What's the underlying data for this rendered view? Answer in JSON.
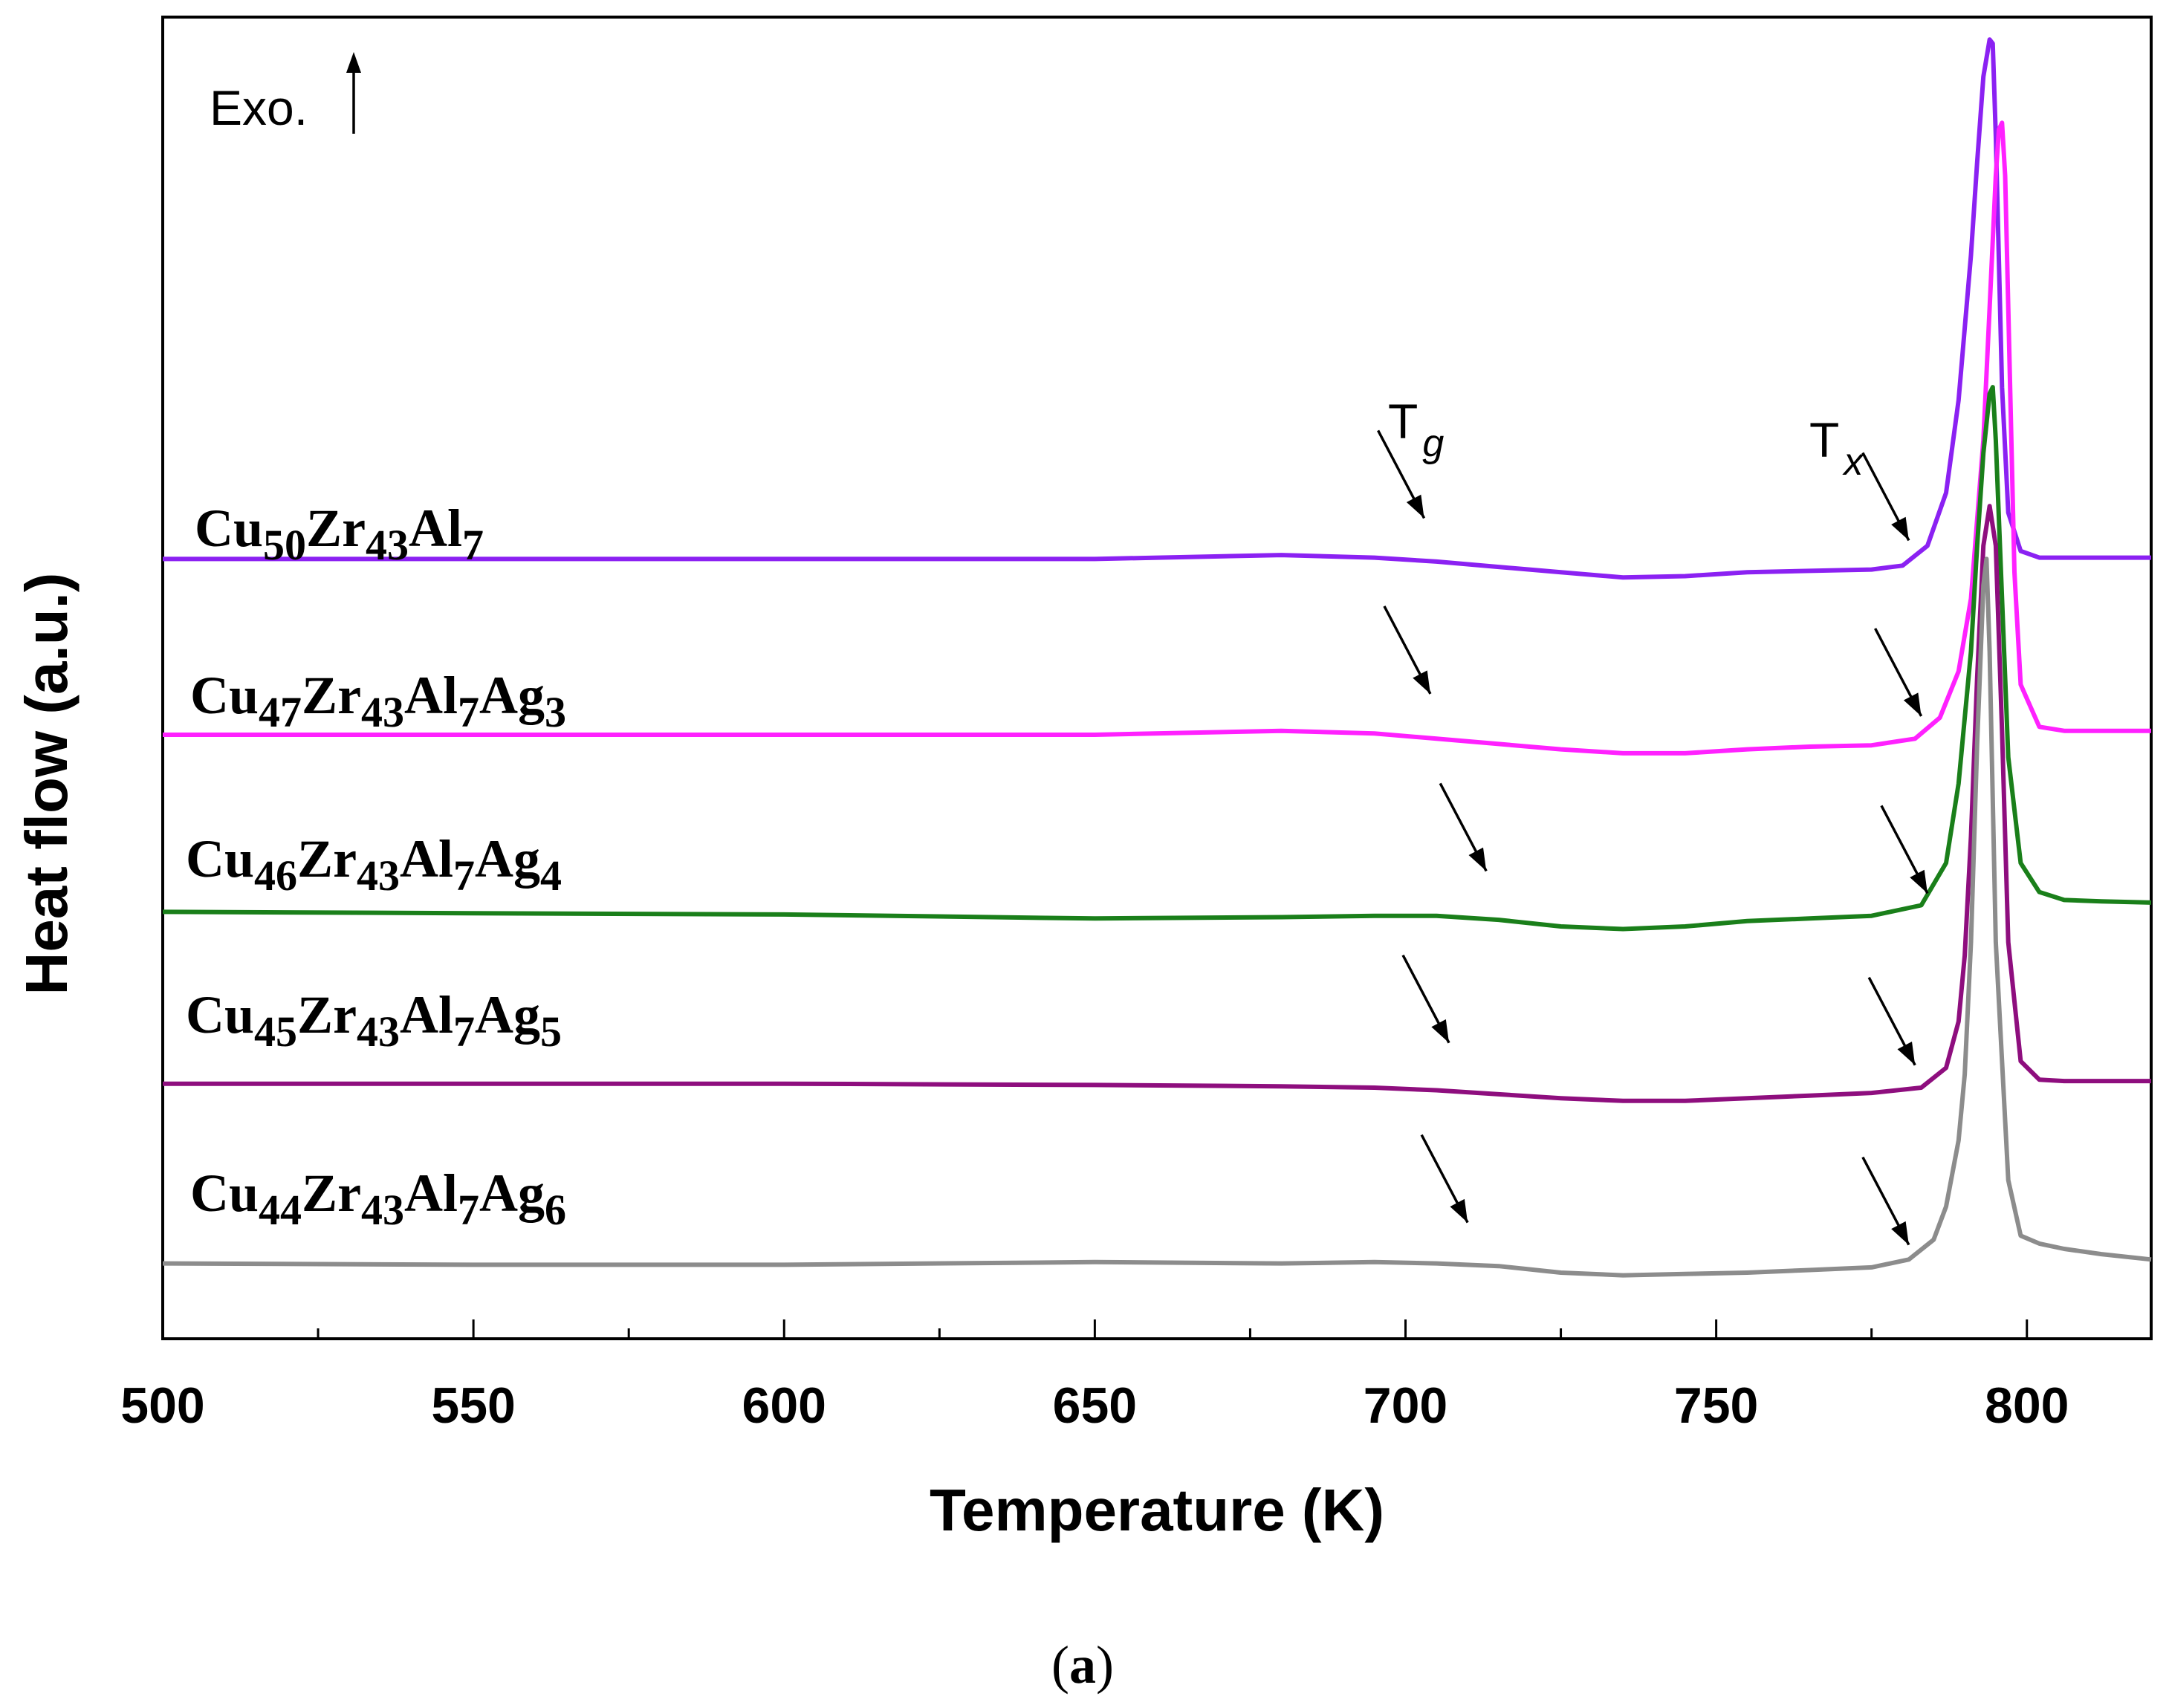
{
  "chart_data": {
    "type": "line",
    "title": "",
    "xlabel": "Temperature (K)",
    "ylabel": "Heat flow (a.u.)",
    "xlim": [
      500,
      820
    ],
    "ylim": [
      0,
      100
    ],
    "xticks": [
      500,
      550,
      600,
      650,
      700,
      750,
      800
    ],
    "xtick_labels": [
      "500",
      "550",
      "600",
      "650",
      "700",
      "750",
      "800"
    ],
    "yticks_shown": false,
    "grid": false,
    "caption": {
      "open": "(",
      "letter": "a",
      "close": ")"
    },
    "exo_label": "Exo.",
    "annotations": {
      "tg": {
        "main": "T",
        "sub": "g"
      },
      "tx": {
        "main": "T",
        "sub": "x"
      }
    },
    "series": [
      {
        "name": "Cu50Zr43Al7",
        "label_parts": [
          {
            "t": "Cu",
            "sub": false
          },
          {
            "t": "50",
            "sub": true
          },
          {
            "t": "Zr",
            "sub": false
          },
          {
            "t": "43",
            "sub": true
          },
          {
            "t": "Al",
            "sub": false
          },
          {
            "t": "7",
            "sub": true
          }
        ],
        "color": "#8B21F2",
        "x": [
          500,
          550,
          600,
          650,
          680,
          695,
          705,
          715,
          725,
          735,
          745,
          755,
          765,
          775,
          780,
          784,
          787,
          789,
          791,
          792,
          793,
          794,
          794.5,
          795,
          796,
          797,
          799,
          802,
          806,
          812,
          820
        ],
        "y": [
          59.0,
          59.0,
          59.0,
          59.0,
          59.3,
          59.1,
          58.8,
          58.4,
          58.0,
          57.6,
          57.7,
          58.0,
          58.1,
          58.2,
          58.5,
          60.0,
          64.0,
          71.0,
          82.0,
          89.0,
          95.5,
          98.3,
          98.0,
          91.0,
          72.0,
          62.5,
          59.6,
          59.1,
          59.1,
          59.1,
          59.1
        ],
        "tg_arrow_x": 703,
        "tx_arrow_x": 781
      },
      {
        "name": "Cu47Zr43Al7Ag3",
        "label_parts": [
          {
            "t": "Cu",
            "sub": false
          },
          {
            "t": "47",
            "sub": true
          },
          {
            "t": "Zr",
            "sub": false
          },
          {
            "t": "43",
            "sub": true
          },
          {
            "t": "Al",
            "sub": false
          },
          {
            "t": "7",
            "sub": true
          },
          {
            "t": "Ag",
            "sub": false
          },
          {
            "t": "3",
            "sub": true
          }
        ],
        "color": "#FF21FF",
        "x": [
          500,
          550,
          600,
          650,
          680,
          695,
          705,
          715,
          725,
          735,
          745,
          755,
          765,
          775,
          782,
          786,
          789,
          791,
          793,
          794,
          795,
          795.5,
          796,
          796.5,
          797,
          798,
          799,
          802,
          806,
          812,
          820
        ],
        "y": [
          45.7,
          45.7,
          45.7,
          45.7,
          46.0,
          45.8,
          45.4,
          45.0,
          44.6,
          44.3,
          44.3,
          44.6,
          44.8,
          44.9,
          45.4,
          47.0,
          50.5,
          56.0,
          68.0,
          78.0,
          88.0,
          91.5,
          92.0,
          88.0,
          78.0,
          58.0,
          49.5,
          46.3,
          46.0,
          46.0,
          46.0
        ],
        "tg_arrow_x": 704,
        "tx_arrow_x": 783
      },
      {
        "name": "Cu46Zr43Al7Ag4",
        "label_parts": [
          {
            "t": "Cu",
            "sub": false
          },
          {
            "t": "46",
            "sub": true
          },
          {
            "t": "Zr",
            "sub": false
          },
          {
            "t": "43",
            "sub": true
          },
          {
            "t": "Al",
            "sub": false
          },
          {
            "t": "7",
            "sub": true
          },
          {
            "t": "Ag",
            "sub": false
          },
          {
            "t": "4",
            "sub": true
          }
        ],
        "color": "#1A7F1A",
        "x": [
          500,
          550,
          600,
          650,
          680,
          695,
          705,
          715,
          725,
          735,
          745,
          755,
          765,
          775,
          783,
          787,
          789,
          791,
          792,
          793,
          794,
          794.5,
          795,
          796,
          797,
          799,
          802,
          806,
          812,
          820
        ],
        "y": [
          32.3,
          32.2,
          32.1,
          31.8,
          31.9,
          32.0,
          32.0,
          31.7,
          31.2,
          31.0,
          31.2,
          31.6,
          31.8,
          32.0,
          32.8,
          36.0,
          42.0,
          52.0,
          60.0,
          67.0,
          71.5,
          72.0,
          68.0,
          56.0,
          44.0,
          36.0,
          33.8,
          33.2,
          33.1,
          33.0
        ],
        "tg_arrow_x": 713,
        "tx_arrow_x": 784
      },
      {
        "name": "Cu45Zr43Al7Ag5",
        "label_parts": [
          {
            "t": "Cu",
            "sub": false
          },
          {
            "t": "45",
            "sub": true
          },
          {
            "t": "Zr",
            "sub": false
          },
          {
            "t": "43",
            "sub": true
          },
          {
            "t": "Al",
            "sub": false
          },
          {
            "t": "7",
            "sub": true
          },
          {
            "t": "Ag",
            "sub": false
          },
          {
            "t": "5",
            "sub": true
          }
        ],
        "color": "#8E0E7E",
        "x": [
          500,
          550,
          600,
          650,
          680,
          695,
          705,
          715,
          725,
          735,
          745,
          755,
          765,
          775,
          783,
          787,
          789,
          790,
          791,
          792,
          793,
          794,
          795,
          796,
          797,
          799,
          802,
          806,
          812,
          820
        ],
        "y": [
          19.3,
          19.3,
          19.3,
          19.2,
          19.1,
          19.0,
          18.8,
          18.5,
          18.2,
          18.0,
          18.0,
          18.2,
          18.4,
          18.6,
          19.0,
          20.5,
          24.0,
          29.0,
          38.0,
          50.0,
          60.0,
          63.0,
          60.0,
          46.0,
          30.0,
          21.0,
          19.6,
          19.5,
          19.5,
          19.5
        ],
        "tg_arrow_x": 707,
        "tx_arrow_x": 782
      },
      {
        "name": "Cu44Zr43Al7Ag6",
        "label_parts": [
          {
            "t": "Cu",
            "sub": false
          },
          {
            "t": "44",
            "sub": true
          },
          {
            "t": "Zr",
            "sub": false
          },
          {
            "t": "43",
            "sub": true
          },
          {
            "t": "Al",
            "sub": false
          },
          {
            "t": "7",
            "sub": true
          },
          {
            "t": "Ag",
            "sub": false
          },
          {
            "t": "6",
            "sub": true
          }
        ],
        "color": "#8C8C8C",
        "x": [
          500,
          550,
          600,
          650,
          680,
          695,
          705,
          715,
          725,
          735,
          745,
          755,
          765,
          775,
          781,
          785,
          787,
          789,
          790,
          791,
          792,
          793,
          793.5,
          794,
          795,
          797,
          799,
          802,
          806,
          812,
          820
        ],
        "y": [
          5.7,
          5.6,
          5.6,
          5.8,
          5.7,
          5.8,
          5.7,
          5.5,
          5.0,
          4.8,
          4.9,
          5.0,
          5.2,
          5.4,
          6.0,
          7.5,
          10.0,
          15.0,
          20.0,
          30.0,
          45.0,
          57.0,
          59.0,
          52.0,
          30.0,
          12.0,
          7.8,
          7.2,
          6.8,
          6.4,
          6.0
        ],
        "tg_arrow_x": 710,
        "tx_arrow_x": 781
      }
    ]
  }
}
